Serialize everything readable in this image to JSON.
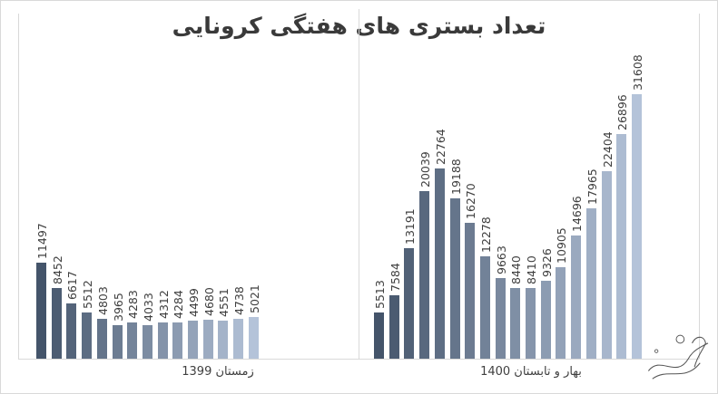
{
  "chart_data": {
    "type": "bar",
    "title": "تعداد بستری های هفتگی کرونایی",
    "xlabel": "",
    "ylabel": "",
    "grid": false,
    "legend": null,
    "groups": [
      {
        "category": "زمستان 1399",
        "values": [
          11497,
          8452,
          6617,
          5512,
          4803,
          3965,
          4283,
          4033,
          4312,
          4284,
          4499,
          4680,
          4551,
          4738,
          5021
        ]
      },
      {
        "category": "بهار و تابستان 1400",
        "values": [
          5513,
          7584,
          13191,
          20039,
          22764,
          19188,
          16270,
          12278,
          9663,
          8440,
          8410,
          9326,
          10905,
          14696,
          17965,
          22404,
          26896,
          31608
        ]
      }
    ],
    "ylim": [
      0,
      31608
    ],
    "colors": {
      "dark": "#44546a",
      "light": "#b4c3d9"
    }
  },
  "labels": {
    "title": "تعداد بستری های هفتگی کرونایی",
    "category_1": "زمستان 1399",
    "category_2": "بهار و تابستان 1400"
  }
}
